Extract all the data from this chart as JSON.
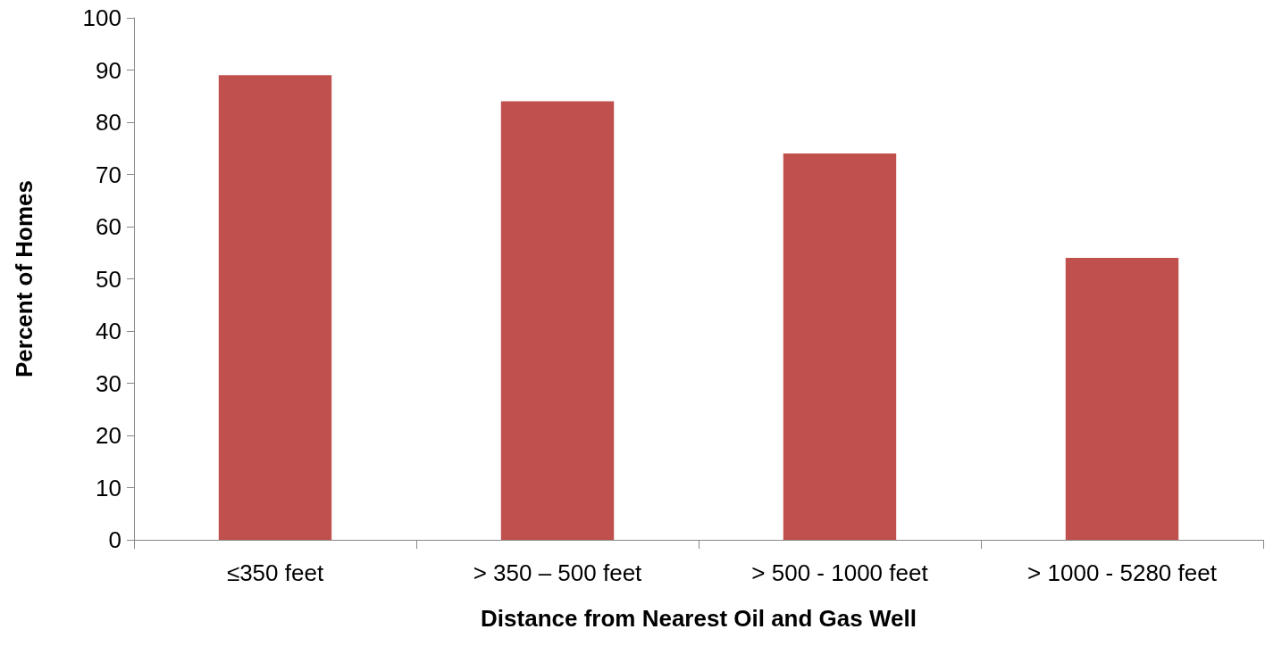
{
  "chart_data": {
    "type": "bar",
    "xlabel": "Distance from Nearest Oil and Gas Well",
    "ylabel": "Percent of Homes",
    "categories": [
      "≤350 feet",
      "> 350 – 500 feet",
      "> 500 - 1000 feet",
      "> 1000 - 5280 feet"
    ],
    "values": [
      89,
      84,
      74,
      54
    ],
    "color": "#c0504d",
    "ylim": [
      0,
      100
    ],
    "yticks": [
      0,
      10,
      20,
      30,
      40,
      50,
      60,
      70,
      80,
      90,
      100
    ],
    "grid": false
  }
}
